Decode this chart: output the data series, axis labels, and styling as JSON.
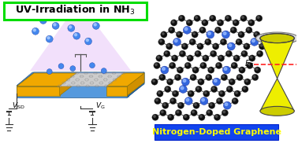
{
  "bg_color": "#ffffff",
  "title_text": "UV-Irradiation in NH",
  "title_sub": "3",
  "title_box_color": "#00dd00",
  "title_text_color": "#000000",
  "uv_beam_color": "#e8c8f8",
  "uv_beam_alpha": 0.55,
  "device_gold_color": "#f0a800",
  "device_gold_dark": "#c88800",
  "device_graphene_color": "#d8d8d8",
  "device_graphene_dark": "#aaaaaa",
  "device_blue_color": "#5599dd",
  "device_blue_dark": "#2266aa",
  "device_blue_side": "#4488cc",
  "device_gold_side": "#d09000",
  "nitrogen_blue": "#4488ee",
  "nitrogen_light": "#88bbff",
  "carbon_black": "#111111",
  "carbon_shine": "#555555",
  "bond_color": "#555555",
  "cone_fill": "#eeee00",
  "cone_edge": "#444444",
  "cone_rim_fill": "#cccc00",
  "ef_dash_color": "#ff2222",
  "label_bg": "#1144ee",
  "label_text": "#ffff00",
  "label_str": "Nitrogen-Doped Graphene"
}
